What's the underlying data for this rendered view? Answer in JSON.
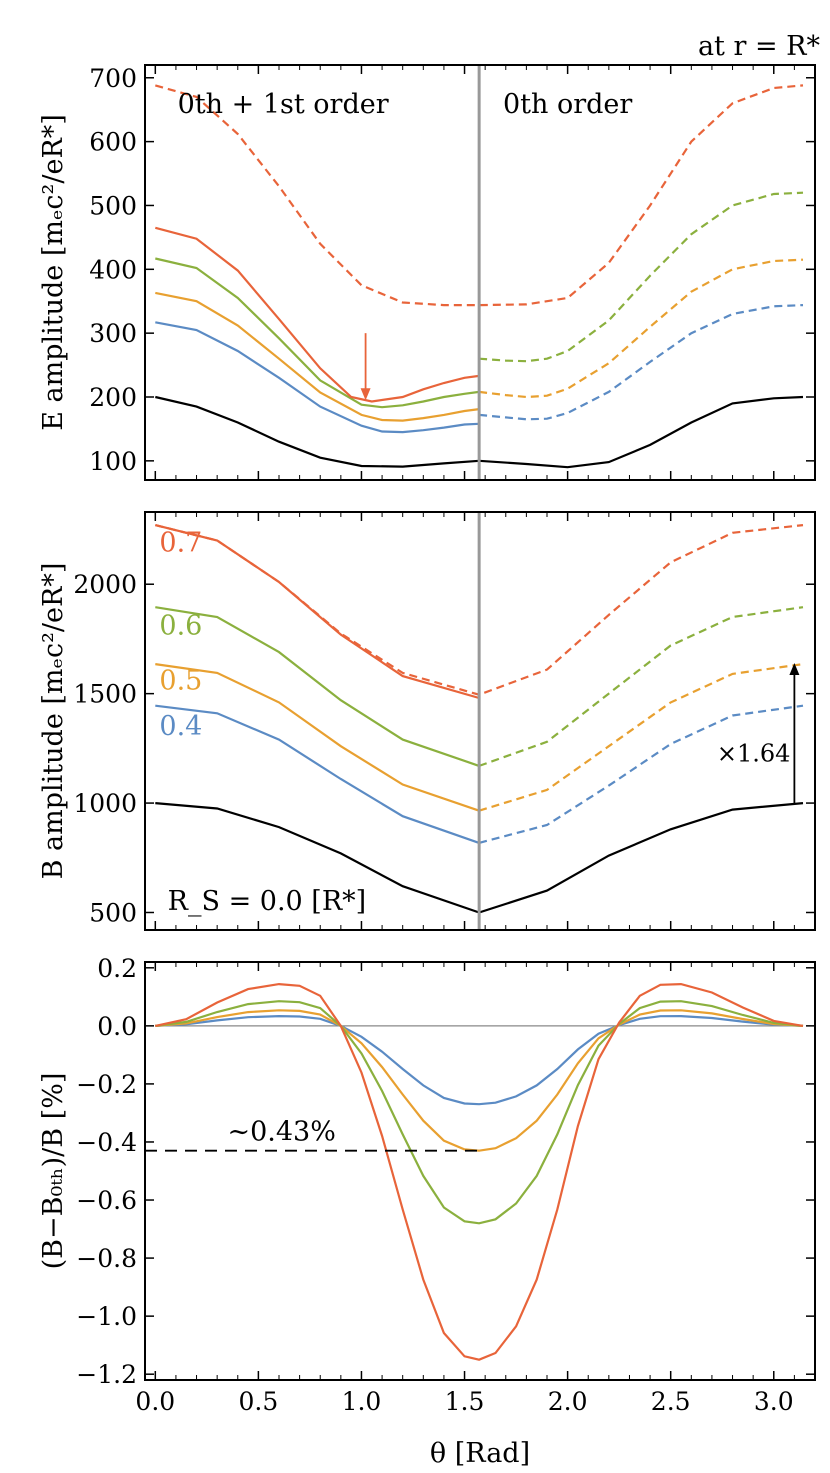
{
  "figure": {
    "header": "at r = R*",
    "xlabel": "θ [Rad]",
    "x_ticks": [
      0.0,
      0.5,
      1.0,
      1.5,
      2.0,
      2.5,
      3.0
    ],
    "x_tick_labels": [
      "0.0",
      "0.5",
      "1.0",
      "1.5",
      "2.0",
      "2.5",
      "3.0"
    ],
    "xlim": [
      -0.05,
      3.2
    ],
    "divider_x": 1.5708
  },
  "colors": {
    "s0": "#000000",
    "s04": "#5b8bc4",
    "s05": "#e8a030",
    "s06": "#8bb03e",
    "s07": "#e8643a",
    "divider": "#999999",
    "zero_line": "#888888"
  },
  "chart_data": [
    {
      "id": "panel-e",
      "type": "line",
      "ylabel": "E amplitude [mₑc²/eR*]",
      "ylim": [
        70,
        720
      ],
      "y_ticks": [
        100,
        200,
        300,
        400,
        500,
        600,
        700
      ],
      "y_tick_labels": [
        "100",
        "200",
        "300",
        "400",
        "500",
        "600",
        "700"
      ],
      "annotations": {
        "left_region": "0th + 1st order",
        "right_region": "0th order"
      },
      "arrow": {
        "x": 1.02,
        "y_from": 300,
        "y_to": 195,
        "color_key": "s07"
      },
      "series": [
        {
          "name": "R_S = 0.0",
          "color_key": "s0",
          "style": "solid",
          "x": [
            0.0,
            0.2,
            0.4,
            0.6,
            0.8,
            1.0,
            1.2,
            1.4,
            1.5708,
            1.8,
            2.0,
            2.2,
            2.4,
            2.6,
            2.8,
            3.0,
            3.1416
          ],
          "y": [
            200,
            185,
            160,
            130,
            105,
            92,
            91,
            96,
            100,
            95,
            90,
            98,
            125,
            160,
            190,
            198,
            200
          ]
        },
        {
          "name": "R_S = 0.4 (0th+1st)",
          "color_key": "s04",
          "style": "solid",
          "x": [
            0.0,
            0.2,
            0.4,
            0.6,
            0.8,
            1.0,
            1.1,
            1.2,
            1.3,
            1.4,
            1.5,
            1.5708
          ],
          "y": [
            317,
            305,
            272,
            230,
            185,
            155,
            146,
            145,
            148,
            152,
            157,
            158
          ]
        },
        {
          "name": "R_S = 0.5 (0th+1st)",
          "color_key": "s05",
          "style": "solid",
          "x": [
            0.0,
            0.2,
            0.4,
            0.6,
            0.8,
            1.0,
            1.1,
            1.2,
            1.3,
            1.4,
            1.5,
            1.5708
          ],
          "y": [
            363,
            350,
            312,
            260,
            207,
            172,
            164,
            163,
            167,
            172,
            178,
            181
          ]
        },
        {
          "name": "R_S = 0.6 (0th+1st)",
          "color_key": "s06",
          "style": "solid",
          "x": [
            0.0,
            0.2,
            0.4,
            0.6,
            0.8,
            1.0,
            1.1,
            1.2,
            1.3,
            1.4,
            1.5,
            1.5708
          ],
          "y": [
            417,
            402,
            355,
            292,
            226,
            188,
            184,
            187,
            193,
            200,
            205,
            208
          ]
        },
        {
          "name": "R_S = 0.7 (0th+1st)",
          "color_key": "s07",
          "style": "solid",
          "x": [
            0.0,
            0.2,
            0.4,
            0.6,
            0.8,
            0.95,
            1.05,
            1.2,
            1.3,
            1.4,
            1.5,
            1.5708
          ],
          "y": [
            465,
            448,
            398,
            322,
            245,
            200,
            193,
            200,
            212,
            222,
            230,
            233
          ]
        },
        {
          "name": "R_S = 0.4 (0th)",
          "color_key": "s04",
          "style": "dashed",
          "x": [
            1.5708,
            1.7,
            1.8,
            1.9,
            2.0,
            2.2,
            2.4,
            2.6,
            2.8,
            3.0,
            3.1416
          ],
          "y": [
            172,
            168,
            165,
            166,
            175,
            208,
            255,
            300,
            330,
            342,
            344
          ]
        },
        {
          "name": "R_S = 0.5 (0th)",
          "color_key": "s05",
          "style": "dashed",
          "x": [
            1.5708,
            1.7,
            1.8,
            1.9,
            2.0,
            2.2,
            2.4,
            2.6,
            2.8,
            3.0,
            3.1416
          ],
          "y": [
            208,
            203,
            200,
            202,
            213,
            253,
            310,
            365,
            400,
            413,
            415
          ]
        },
        {
          "name": "R_S = 0.6 (0th)",
          "color_key": "s06",
          "style": "dashed",
          "x": [
            1.5708,
            1.7,
            1.8,
            1.9,
            2.0,
            2.2,
            2.4,
            2.6,
            2.8,
            3.0,
            3.1416
          ],
          "y": [
            260,
            257,
            256,
            260,
            272,
            320,
            390,
            455,
            500,
            518,
            520
          ]
        },
        {
          "name": "R_S = 0.7 (0th)",
          "color_key": "s07",
          "style": "dashed",
          "x": [
            0.0,
            0.2,
            0.4,
            0.6,
            0.8,
            1.0,
            1.2,
            1.4,
            1.5708,
            1.8,
            2.0,
            2.2,
            2.4,
            2.6,
            2.8,
            3.0,
            3.1416
          ],
          "y": [
            688,
            670,
            612,
            530,
            440,
            375,
            348,
            344,
            344,
            345,
            355,
            410,
            500,
            600,
            660,
            684,
            688
          ]
        }
      ]
    },
    {
      "id": "panel-b",
      "type": "line",
      "ylabel": "B amplitude [mₑc²/eR*]",
      "ylim": [
        420,
        2330
      ],
      "y_ticks": [
        500,
        1000,
        1500,
        2000
      ],
      "y_tick_labels": [
        "500",
        "1000",
        "1500",
        "2000"
      ],
      "series_labels": [
        {
          "text": "0.7",
          "x": 0.02,
          "y": 2150,
          "color_key": "s07"
        },
        {
          "text": "0.6",
          "x": 0.02,
          "y": 1770,
          "color_key": "s06"
        },
        {
          "text": "0.5",
          "x": 0.02,
          "y": 1520,
          "color_key": "s05"
        },
        {
          "text": "0.4",
          "x": 0.02,
          "y": 1310,
          "color_key": "s04"
        }
      ],
      "rs_label": "R_S = 0.0 [R*]",
      "factor_label": "×1.64",
      "factor_arrow": {
        "x": 3.1,
        "y_from": 1000,
        "y_to": 1640
      },
      "series": [
        {
          "name": "R_S = 0.0",
          "color_key": "s0",
          "style": "solid",
          "x": [
            0.0,
            0.3,
            0.6,
            0.9,
            1.2,
            1.5708,
            1.9,
            2.2,
            2.5,
            2.8,
            3.1416
          ],
          "y": [
            1000,
            975,
            890,
            770,
            620,
            500,
            600,
            760,
            880,
            970,
            1000
          ]
        },
        {
          "name": "R_S = 0.4 (0th+1st)",
          "color_key": "s04",
          "style": "solid",
          "x": [
            0.0,
            0.3,
            0.6,
            0.9,
            1.2,
            1.5708
          ],
          "y": [
            1445,
            1410,
            1290,
            1110,
            940,
            818
          ]
        },
        {
          "name": "R_S = 0.5 (0th+1st)",
          "color_key": "s05",
          "style": "solid",
          "x": [
            0.0,
            0.3,
            0.6,
            0.9,
            1.2,
            1.5708
          ],
          "y": [
            1635,
            1595,
            1460,
            1260,
            1085,
            965
          ]
        },
        {
          "name": "R_S = 0.6 (0th+1st)",
          "color_key": "s06",
          "style": "solid",
          "x": [
            0.0,
            0.3,
            0.6,
            0.9,
            1.2,
            1.5708
          ],
          "y": [
            1895,
            1850,
            1690,
            1470,
            1290,
            1170
          ]
        },
        {
          "name": "R_S = 0.7 (0th+1st)",
          "color_key": "s07",
          "style": "solid",
          "x": [
            0.0,
            0.3,
            0.6,
            0.9,
            1.2,
            1.5708
          ],
          "y": [
            2270,
            2200,
            2010,
            1770,
            1580,
            1480
          ]
        },
        {
          "name": "R_S = 0.4 (0th)",
          "color_key": "s04",
          "style": "dashed",
          "x": [
            1.5708,
            1.9,
            2.2,
            2.5,
            2.8,
            3.1416
          ],
          "y": [
            818,
            900,
            1080,
            1270,
            1400,
            1445
          ]
        },
        {
          "name": "R_S = 0.5 (0th)",
          "color_key": "s05",
          "style": "dashed",
          "x": [
            1.5708,
            1.9,
            2.2,
            2.5,
            2.8,
            3.1416
          ],
          "y": [
            965,
            1060,
            1260,
            1460,
            1590,
            1635
          ]
        },
        {
          "name": "R_S = 0.6 (0th)",
          "color_key": "s06",
          "style": "dashed",
          "x": [
            1.5708,
            1.9,
            2.2,
            2.5,
            2.8,
            3.1416
          ],
          "y": [
            1170,
            1280,
            1500,
            1720,
            1850,
            1895
          ]
        },
        {
          "name": "R_S = 0.7 (0th)",
          "color_key": "s07",
          "style": "dashed",
          "x": [
            0.0,
            0.3,
            0.6,
            0.9,
            1.2,
            1.5708,
            1.9,
            2.2,
            2.5,
            2.8,
            3.1416
          ],
          "y": [
            2270,
            2200,
            2010,
            1775,
            1595,
            1495,
            1610,
            1860,
            2100,
            2235,
            2270
          ]
        }
      ]
    },
    {
      "id": "panel-diff",
      "type": "line",
      "ylabel": "(B−B₀ₜₕ)/B [%]",
      "ylim": [
        -1.22,
        0.22
      ],
      "y_ticks": [
        -1.2,
        -1.0,
        -0.8,
        -0.6,
        -0.4,
        -0.2,
        0.0,
        0.2
      ],
      "y_tick_labels": [
        "−1.2",
        "−1.0",
        "−0.8",
        "−0.6",
        "−0.4",
        "−0.2",
        "0.0",
        "0.2"
      ],
      "ref_line": {
        "y": -0.43,
        "x_to": 1.5708,
        "label": "∼0.43%"
      },
      "series": [
        {
          "name": "R_S = 0.4",
          "color_key": "s04",
          "amplitude": 0.27
        },
        {
          "name": "R_S = 0.5",
          "color_key": "s05",
          "amplitude": 0.43
        },
        {
          "name": "R_S = 0.6",
          "color_key": "s06",
          "amplitude": 0.68
        },
        {
          "name": "R_S = 0.7",
          "color_key": "s07",
          "amplitude": 1.15
        }
      ],
      "shape": {
        "x": [
          0.0,
          0.15,
          0.3,
          0.45,
          0.6,
          0.7,
          0.8,
          0.9,
          1.0,
          1.1,
          1.2,
          1.3,
          1.4,
          1.5,
          1.5708,
          1.65,
          1.75,
          1.85,
          1.95,
          2.05,
          2.15,
          2.25,
          2.35,
          2.45,
          2.55,
          2.7,
          2.85,
          3.0,
          3.1416
        ],
        "y": [
          0.0,
          0.02,
          0.07,
          0.11,
          0.125,
          0.12,
          0.09,
          0.0,
          -0.14,
          -0.33,
          -0.55,
          -0.76,
          -0.92,
          -0.99,
          -1.0,
          -0.98,
          -0.9,
          -0.76,
          -0.55,
          -0.3,
          -0.1,
          0.01,
          0.09,
          0.123,
          0.125,
          0.1,
          0.055,
          0.015,
          0.0
        ]
      }
    }
  ]
}
